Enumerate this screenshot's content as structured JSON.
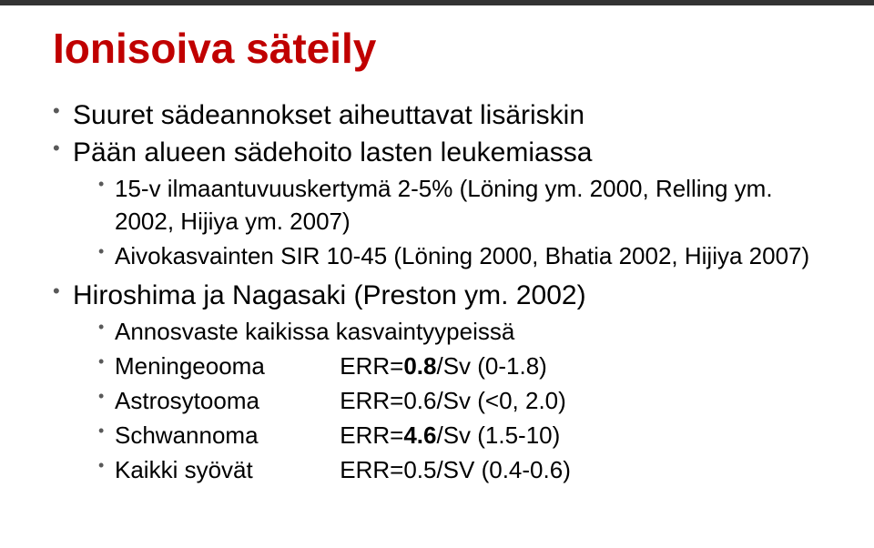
{
  "colors": {
    "title": "#c00000",
    "bullet": "#595959",
    "text": "#000000",
    "topbar": "#333333",
    "background": "#ffffff"
  },
  "title": "Ionisoiva säteily",
  "b1": "Suuret sädeannokset aiheuttavat lisäriskin",
  "b2": "Pään alueen sädehoito lasten leukemiassa",
  "b2_1": "15-v ilmaantuvuuskertymä 2-5% (Löning ym. 2000, Relling ym. 2002, Hijiya ym. 2007)",
  "b2_2": "Aivokasvainten SIR 10-45 (Löning 2000, Bhatia 2002, Hijiya 2007)",
  "b3": "Hiroshima ja Nagasaki (Preston ym. 2002)",
  "b3_1": "Annosvaste kaikissa kasvaintyypeissä",
  "rows": {
    "meningeooma": {
      "label": "Meningeooma",
      "err_prefix": "ERR=",
      "err_bold": "0.8",
      "err_rest": "/Sv (0-1.8)"
    },
    "astrosytooma": {
      "label": "Astrosytooma",
      "value": "ERR=0.6/Sv (<0, 2.0)"
    },
    "schwannoma": {
      "label": "Schwannoma",
      "err_prefix": "ERR=",
      "err_bold": "4.6",
      "err_rest": "/Sv (1.5-10)"
    },
    "kaikki": {
      "label": "Kaikki syövät",
      "value": "ERR=0.5/SV (0.4-0.6)"
    }
  }
}
